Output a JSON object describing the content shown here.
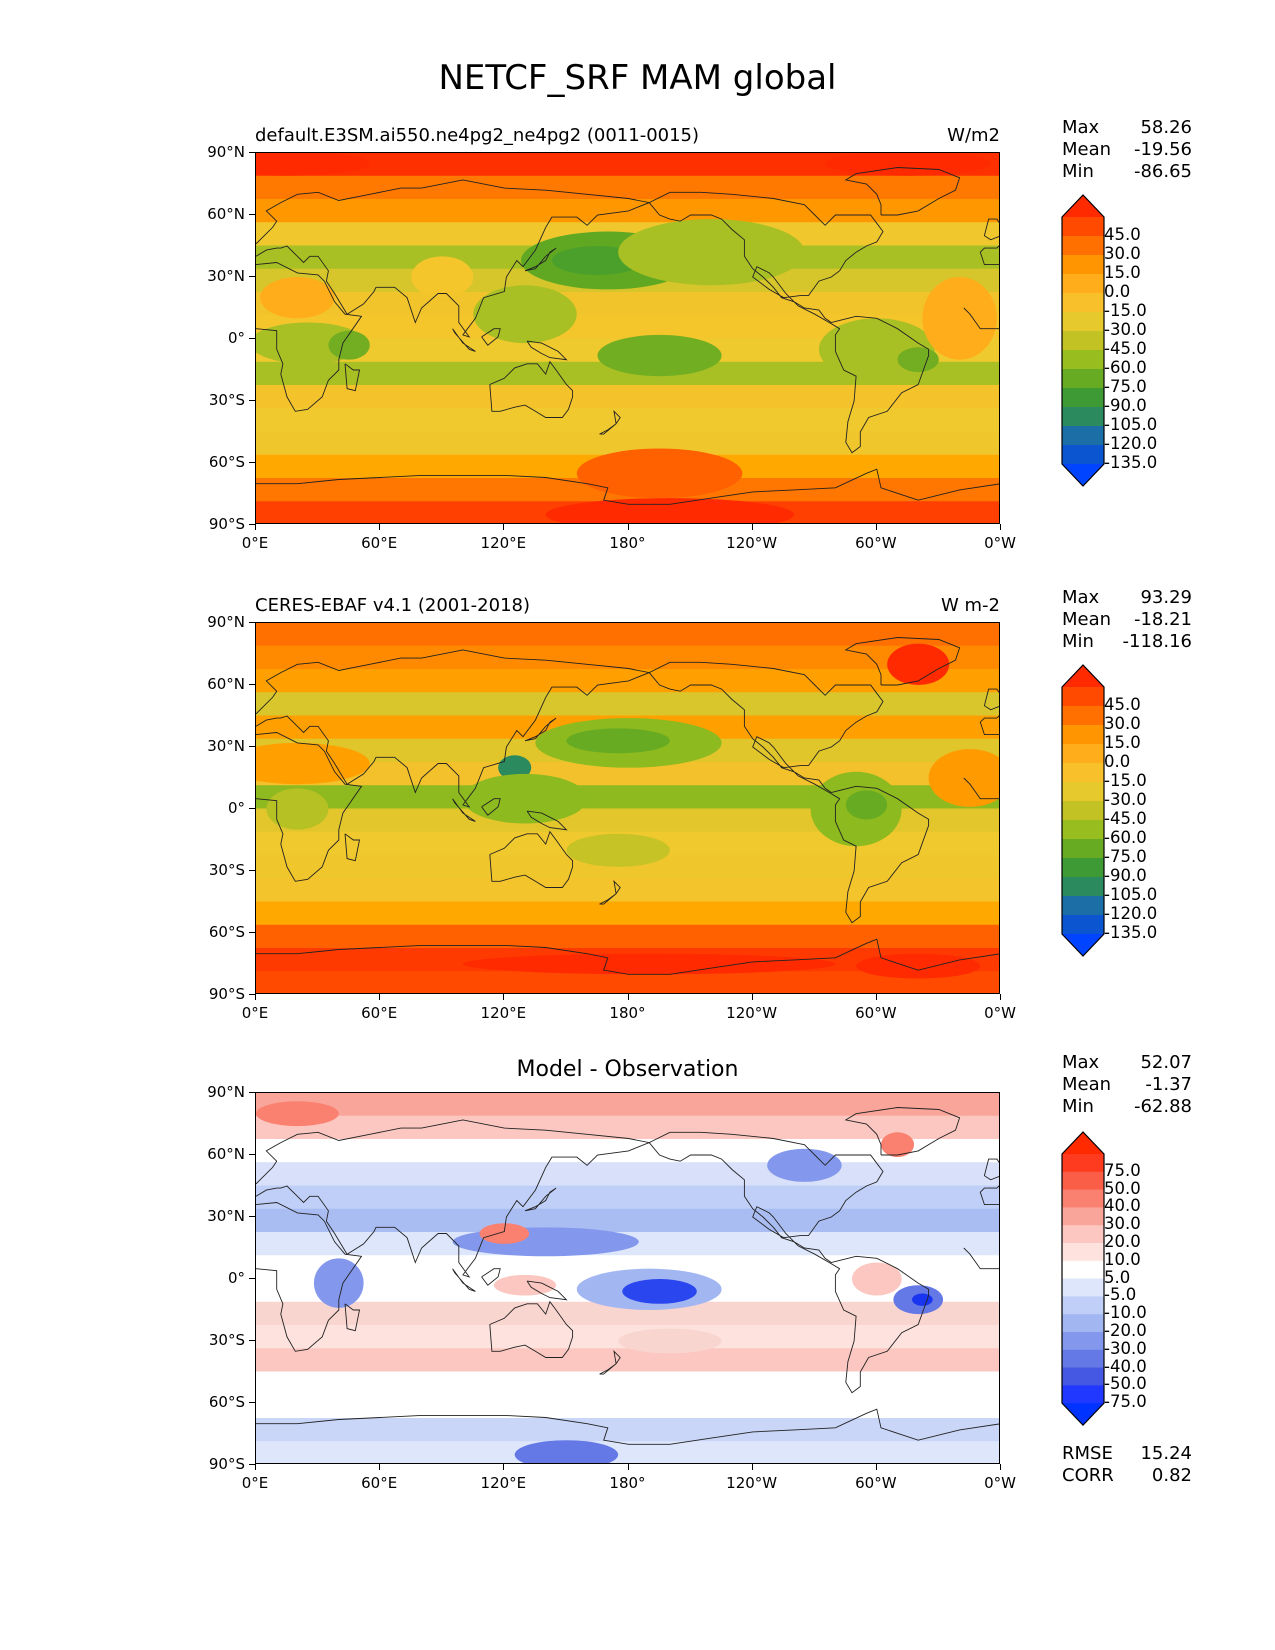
{
  "title": "NETCF_SRF MAM global",
  "axes": {
    "y_ticks": [
      "90°N",
      "60°N",
      "30°N",
      "0°",
      "30°S",
      "60°S",
      "90°S"
    ],
    "x_ticks": [
      "0°E",
      "60°E",
      "120°E",
      "180°",
      "120°W",
      "60°W",
      "0°W"
    ]
  },
  "panels": [
    {
      "id": "model",
      "title": "default.E3SM.ai550.ne4pg2_ne4pg2 (0011-0015)",
      "units": "W/m2",
      "stats": [
        {
          "label": "Max",
          "value": "58.26"
        },
        {
          "label": "Mean",
          "value": "-19.56"
        },
        {
          "label": "Min",
          "value": "-86.65"
        }
      ],
      "colorbar": {
        "labels": [
          "45.0",
          "30.0",
          "15.0",
          "0.0",
          "-15.0",
          "-30.0",
          "-45.0",
          "-60.0",
          "-75.0",
          "-90.0",
          "-105.0",
          "-120.0",
          "-135.0"
        ],
        "colors": [
          "#ff2a00",
          "#ff4a00",
          "#ff7000",
          "#ff9500",
          "#ffad1a",
          "#f8c02b",
          "#e6c92c",
          "#c2c225",
          "#98bd1e",
          "#67ab22",
          "#3e9a35",
          "#2b8a5e",
          "#1c6fa6",
          "#0c55d0",
          "#0044ff"
        ]
      },
      "zone_colors": [
        "#ff3000",
        "#ff7800",
        "#ff9800",
        "#f0c82e",
        "#a9c024",
        "#d6c62b",
        "#f2c42b",
        "#f5c52c",
        "#efca2f",
        "#a9c024",
        "#f4c32c",
        "#f0c92e",
        "#f0c62d",
        "#ffa800",
        "#ff7600",
        "#ff4000"
      ],
      "blobs": [
        {
          "lon": 170,
          "lat": 38,
          "rx": 42,
          "ry": 14,
          "c": "#61a822"
        },
        {
          "lon": 165,
          "lat": 38,
          "rx": 22,
          "ry": 7,
          "c": "#4aa02b"
        },
        {
          "lon": 220,
          "lat": 42,
          "rx": 45,
          "ry": 16,
          "c": "#a9c024"
        },
        {
          "lon": 130,
          "lat": 12,
          "rx": 25,
          "ry": 14,
          "c": "#a9c024"
        },
        {
          "lon": 195,
          "lat": -8,
          "rx": 30,
          "ry": 10,
          "c": "#72ae22"
        },
        {
          "lon": 25,
          "lat": -2,
          "rx": 28,
          "ry": 10,
          "c": "#a9c024"
        },
        {
          "lon": 45,
          "lat": -3,
          "rx": 10,
          "ry": 7,
          "c": "#73ae22"
        },
        {
          "lon": 300,
          "lat": -5,
          "rx": 28,
          "ry": 15,
          "c": "#a9c024"
        },
        {
          "lon": 320,
          "lat": -10,
          "rx": 10,
          "ry": 6,
          "c": "#73ae22"
        },
        {
          "lon": 340,
          "lat": 10,
          "rx": 18,
          "ry": 20,
          "c": "#ffad1a"
        },
        {
          "lon": 20,
          "lat": 20,
          "rx": 18,
          "ry": 10,
          "c": "#ffad1a"
        },
        {
          "lon": 90,
          "lat": 30,
          "rx": 15,
          "ry": 10,
          "c": "#f5c52c"
        },
        {
          "lon": 195,
          "lat": -65,
          "rx": 40,
          "ry": 12,
          "c": "#ff6000"
        },
        {
          "lon": 200,
          "lat": -85,
          "rx": 60,
          "ry": 8,
          "c": "#ff2a00"
        },
        {
          "lon": 15,
          "lat": 85,
          "rx": 40,
          "ry": 6,
          "c": "#ff2a00"
        },
        {
          "lon": 315,
          "lat": 85,
          "rx": 40,
          "ry": 6,
          "c": "#ff2a00"
        }
      ]
    },
    {
      "id": "obs",
      "title": "CERES-EBAF v4.1 (2001-2018)",
      "units": "W m-2",
      "stats": [
        {
          "label": "Max",
          "value": "93.29"
        },
        {
          "label": "Mean",
          "value": "-18.21"
        },
        {
          "label": "Min",
          "value": "-118.16"
        }
      ],
      "colorbar": {
        "labels": [
          "45.0",
          "30.0",
          "15.0",
          "0.0",
          "-15.0",
          "-30.0",
          "-45.0",
          "-60.0",
          "-75.0",
          "-90.0",
          "-105.0",
          "-120.0",
          "-135.0"
        ],
        "colors": [
          "#ff2a00",
          "#ff4a00",
          "#ff7000",
          "#ff9500",
          "#ffad1a",
          "#f8c02b",
          "#e6c92c",
          "#c2c225",
          "#98bd1e",
          "#67ab22",
          "#3e9a35",
          "#2b8a5e",
          "#1c6fa6",
          "#0c55d0",
          "#0044ff"
        ]
      },
      "zone_colors": [
        "#ff7000",
        "#ff8a00",
        "#ffa000",
        "#d9c52c",
        "#ffa000",
        "#e0c52b",
        "#f2c12b",
        "#8fba1f",
        "#e2c62c",
        "#f0c92e",
        "#f0c62d",
        "#f3c42b",
        "#ffa800",
        "#ff6000",
        "#ff3a00",
        "#ff4a00"
      ],
      "blobs": [
        {
          "lon": 180,
          "lat": 32,
          "rx": 45,
          "ry": 12,
          "c": "#8cba1f"
        },
        {
          "lon": 175,
          "lat": 33,
          "rx": 25,
          "ry": 6,
          "c": "#67ab22"
        },
        {
          "lon": 125,
          "lat": 20,
          "rx": 8,
          "ry": 6,
          "c": "#2b8a5e"
        },
        {
          "lon": 130,
          "lat": 5,
          "rx": 30,
          "ry": 12,
          "c": "#8cba1f"
        },
        {
          "lon": 290,
          "lat": 0,
          "rx": 22,
          "ry": 18,
          "c": "#8cba1f"
        },
        {
          "lon": 295,
          "lat": 2,
          "rx": 10,
          "ry": 7,
          "c": "#67ab22"
        },
        {
          "lon": 20,
          "lat": 0,
          "rx": 15,
          "ry": 10,
          "c": "#b6c124"
        },
        {
          "lon": 20,
          "lat": 22,
          "rx": 35,
          "ry": 10,
          "c": "#ffa000"
        },
        {
          "lon": 345,
          "lat": 15,
          "rx": 20,
          "ry": 14,
          "c": "#ff9a00"
        },
        {
          "lon": 175,
          "lat": -20,
          "rx": 25,
          "ry": 8,
          "c": "#c6c326"
        },
        {
          "lon": 320,
          "lat": 70,
          "rx": 15,
          "ry": 10,
          "c": "#ff2a00"
        },
        {
          "lon": 190,
          "lat": -75,
          "rx": 90,
          "ry": 5,
          "c": "#ff2a00"
        },
        {
          "lon": 320,
          "lat": -76,
          "rx": 30,
          "ry": 6,
          "c": "#ff2a00"
        }
      ]
    },
    {
      "id": "diff",
      "title": "Model - Observation",
      "units": "",
      "stats": [
        {
          "label": "Max",
          "value": "52.07"
        },
        {
          "label": "Mean",
          "value": "-1.37"
        },
        {
          "label": "Min",
          "value": "-62.88"
        }
      ],
      "extra_stats": [
        {
          "label": "RMSE",
          "value": "15.24"
        },
        {
          "label": "CORR",
          "value": "0.82"
        }
      ],
      "colorbar": {
        "labels": [
          "75.0",
          "50.0",
          "40.0",
          "30.0",
          "20.0",
          "10.0",
          "5.0",
          "-5.0",
          "-10.0",
          "-20.0",
          "-30.0",
          "-40.0",
          "-50.0",
          "-75.0"
        ],
        "colors": [
          "#ff2a00",
          "#fe3b1e",
          "#fb5e46",
          "#fa8070",
          "#f9a59a",
          "#fbc7c0",
          "#fde2de",
          "#ffffff",
          "#dde6fb",
          "#c0cff7",
          "#a2b6f2",
          "#8398ec",
          "#6478e6",
          "#4458e4",
          "#2038ff",
          "#0033ff"
        ]
      },
      "zone_colors": [
        "#f9a59a",
        "#fbc7c0",
        "#ffffff",
        "#d8e0fa",
        "#c0cff7",
        "#a9bdf3",
        "#dde6fb",
        "#ffffff",
        "#ffffff",
        "#f9d5cf",
        "#fde2de",
        "#fbc7c0",
        "#ffffff",
        "#ffffff",
        "#c9d6f8",
        "#dde6fb"
      ],
      "blobs": [
        {
          "lon": 190,
          "lat": -5,
          "rx": 35,
          "ry": 10,
          "c": "#a2b6f2"
        },
        {
          "lon": 195,
          "lat": -6,
          "rx": 18,
          "ry": 6,
          "c": "#2a46ee"
        },
        {
          "lon": 320,
          "lat": -10,
          "rx": 12,
          "ry": 7,
          "c": "#6478e6"
        },
        {
          "lon": 322,
          "lat": -10,
          "rx": 5,
          "ry": 3,
          "c": "#1a35f0"
        },
        {
          "lon": 40,
          "lat": -2,
          "rx": 12,
          "ry": 12,
          "c": "#8398ec"
        },
        {
          "lon": 140,
          "lat": 18,
          "rx": 45,
          "ry": 7,
          "c": "#8398ec"
        },
        {
          "lon": 120,
          "lat": 22,
          "rx": 12,
          "ry": 5,
          "c": "#fa8070"
        },
        {
          "lon": 265,
          "lat": 55,
          "rx": 18,
          "ry": 8,
          "c": "#8398ec"
        },
        {
          "lon": 310,
          "lat": 65,
          "rx": 8,
          "ry": 6,
          "c": "#fa8070"
        },
        {
          "lon": 150,
          "lat": -85,
          "rx": 25,
          "ry": 7,
          "c": "#6478e6"
        },
        {
          "lon": 20,
          "lat": 80,
          "rx": 20,
          "ry": 6,
          "c": "#fa8070"
        },
        {
          "lon": 200,
          "lat": -30,
          "rx": 25,
          "ry": 6,
          "c": "#f9d5cf"
        },
        {
          "lon": 300,
          "lat": 0,
          "rx": 12,
          "ry": 8,
          "c": "#fbc7c0"
        },
        {
          "lon": 130,
          "lat": -3,
          "rx": 15,
          "ry": 5,
          "c": "#fbc7c0"
        }
      ]
    }
  ]
}
